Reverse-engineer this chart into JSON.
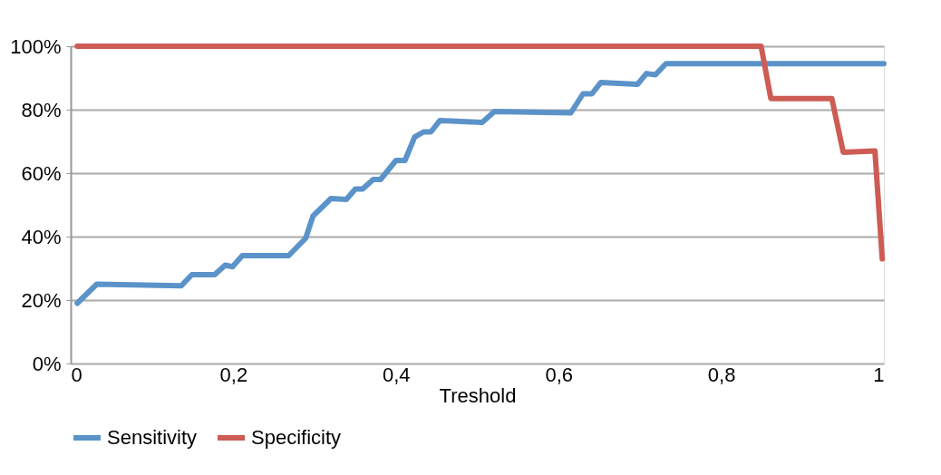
{
  "chart_data": {
    "type": "line",
    "xlabel": "Treshold",
    "xlim": [
      0,
      1
    ],
    "xticks": [
      0,
      {
        "value": 0.2,
        "label": "0,2"
      },
      {
        "value": 0.4,
        "label": "0,4"
      },
      {
        "value": 0.6,
        "label": "0,6"
      },
      {
        "value": 0.8,
        "label": "0,8"
      },
      1
    ],
    "ylim": [
      0,
      100
    ],
    "yticks": [
      {
        "value": 0,
        "label": "0%"
      },
      {
        "value": 20,
        "label": "20%"
      },
      {
        "value": 40,
        "label": "40%"
      },
      {
        "value": 60,
        "label": "60%"
      },
      {
        "value": 80,
        "label": "80%"
      },
      {
        "value": 100,
        "label": "100%"
      }
    ],
    "grid": "y",
    "legend": "bottom",
    "marker": "none",
    "line_style": "solid",
    "series": [
      {
        "name": "Sensitivity",
        "color": "#5b93c9",
        "x": [
          0.008,
          0.032,
          0.136,
          0.149,
          0.177,
          0.19,
          0.199,
          0.211,
          0.268,
          0.289,
          0.298,
          0.32,
          0.339,
          0.35,
          0.359,
          0.372,
          0.381,
          0.4,
          0.411,
          0.423,
          0.434,
          0.443,
          0.454,
          0.506,
          0.521,
          0.615,
          0.63,
          0.641,
          0.652,
          0.697,
          0.708,
          0.719,
          0.732,
          1
        ],
        "values": [
          19,
          25,
          24.5,
          28,
          28,
          31,
          30.5,
          34,
          34,
          39.5,
          46.5,
          52,
          51.7,
          55,
          55,
          58,
          58,
          64,
          64,
          71.4,
          73,
          73,
          76.6,
          76,
          79.4,
          79,
          85,
          85,
          88.6,
          88,
          91.4,
          91,
          94.5,
          94.5
        ]
      },
      {
        "name": "Specificity",
        "color": "#cd5c54",
        "x": [
          0.008,
          0.849,
          0.861,
          0.936,
          0.95,
          0.989,
          0.998
        ],
        "values": [
          100,
          100,
          83.5,
          83.5,
          66.6,
          67,
          33
        ]
      }
    ]
  }
}
